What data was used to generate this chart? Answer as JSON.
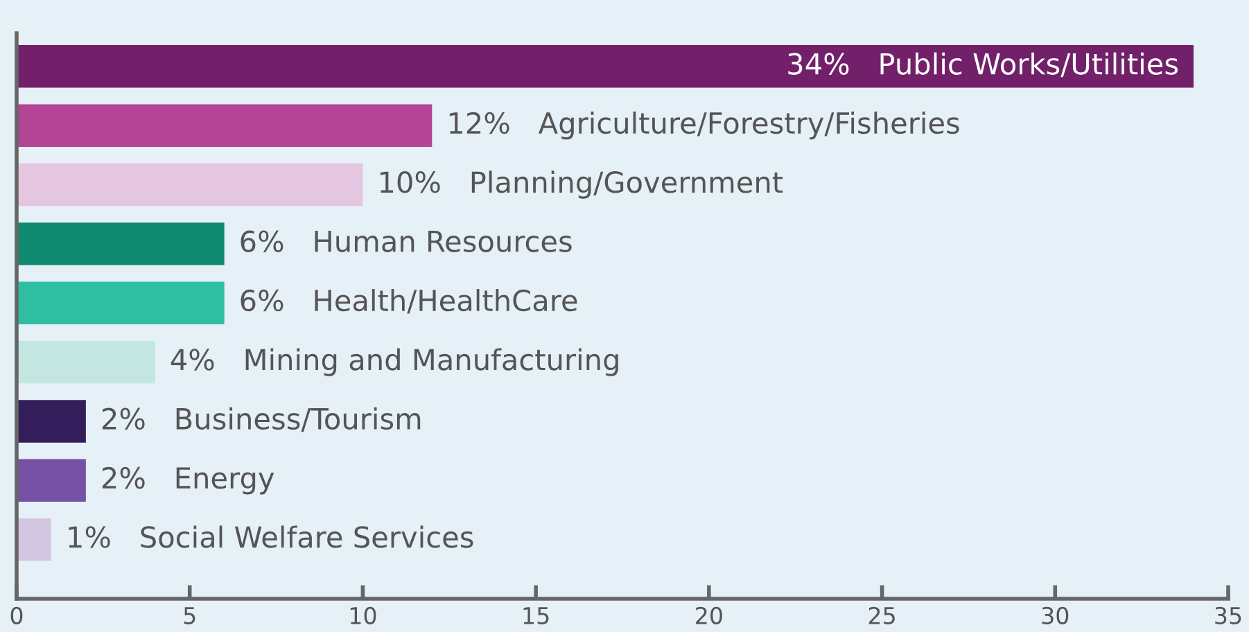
{
  "chart_data": {
    "type": "bar",
    "orientation": "horizontal",
    "categories": [
      "Public Works/Utilities",
      "Agriculture/Forestry/Fisheries",
      "Planning/Government",
      "Human Resources",
      "Health/HealthCare",
      "Mining and Manufacturing",
      "Business/Tourism",
      "Energy",
      "Social Welfare Services"
    ],
    "values": [
      34,
      12,
      10,
      6,
      6,
      4,
      2,
      2,
      1
    ],
    "value_labels": [
      "34%",
      "12%",
      "10%",
      "6%",
      "6%",
      "4%",
      "2%",
      "2%",
      "1%"
    ],
    "colors": [
      "#72206a",
      "#b44495",
      "#e5c6e0",
      "#0e8a70",
      "#2ebfa3",
      "#c4e6e1",
      "#331d5b",
      "#7651a3",
      "#d2c6e1"
    ],
    "xlim": [
      0,
      35
    ],
    "xticks": [
      0,
      5,
      10,
      15,
      20,
      25,
      30,
      35
    ],
    "grid": false,
    "legend": false
  }
}
